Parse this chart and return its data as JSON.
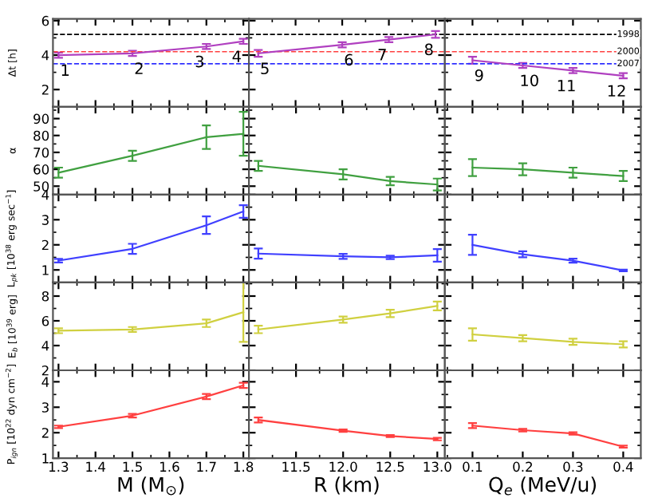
{
  "chart_data": [
    {
      "type": "line",
      "x": [
        1.3,
        1.5,
        1.7,
        1.8
      ],
      "values": [
        4.0,
        4.1,
        4.5,
        4.8
      ],
      "errors": [
        0.15,
        0.15,
        0.15,
        0.15
      ],
      "color": "#b040c0",
      "xlim": [
        1.285,
        1.815
      ],
      "xticks": [
        1.3,
        1.4,
        1.5,
        1.6,
        1.7,
        1.8
      ],
      "ylim": [
        1.0,
        6.1
      ],
      "yticks": [
        2,
        4,
        6
      ],
      "ylabel": "Δt [h]",
      "tick_labels": "y",
      "ref_lines": [
        {
          "axis": "y",
          "value": 5.2,
          "color": "#000000",
          "line_style": "dashed"
        },
        {
          "axis": "y",
          "value": 4.2,
          "color": "#ff4040",
          "line_style": "dashed"
        },
        {
          "axis": "y",
          "value": 3.5,
          "color": "#3030ff",
          "line_style": "dashed"
        }
      ],
      "annotations": [
        {
          "text": "1",
          "x": 1.3,
          "y": 4.0
        },
        {
          "text": "2",
          "x": 1.5,
          "y": 4.1
        },
        {
          "text": "3",
          "x": 1.7,
          "y": 4.5
        },
        {
          "text": "4",
          "x": 1.8,
          "y": 4.8
        }
      ]
    },
    {
      "type": "line",
      "x": [
        11.1,
        12.0,
        12.5,
        13.0
      ],
      "values": [
        4.1,
        4.6,
        4.9,
        5.2
      ],
      "errors": [
        0.2,
        0.15,
        0.15,
        0.2
      ],
      "color": "#b040c0",
      "xlim": [
        11.0,
        13.1
      ],
      "xticks": [
        11.5,
        12,
        12.5,
        13
      ],
      "ylim": [
        1.0,
        6.1
      ],
      "yticks": [
        2,
        4,
        6
      ],
      "tick_labels": false,
      "ref_lines": [
        {
          "axis": "y",
          "value": 5.2,
          "color": "#000000",
          "line_style": "dashed"
        },
        {
          "axis": "y",
          "value": 4.2,
          "color": "#ff4040",
          "line_style": "dashed"
        },
        {
          "axis": "y",
          "value": 3.5,
          "color": "#3030ff",
          "line_style": "dashed"
        }
      ],
      "annotations": [
        {
          "text": "5",
          "x": 11.1,
          "y": 4.1
        },
        {
          "text": "6",
          "x": 12.0,
          "y": 4.6
        },
        {
          "text": "7",
          "x": 12.5,
          "y": 4.9
        },
        {
          "text": "8",
          "x": 13.0,
          "y": 5.2
        }
      ]
    },
    {
      "type": "line",
      "x": [
        0.1,
        0.2,
        0.3,
        0.4
      ],
      "values": [
        3.7,
        3.4,
        3.1,
        2.8
      ],
      "errors": [
        0.2,
        0.15,
        0.15,
        0.15
      ],
      "color": "#b040c0",
      "xlim": [
        0.045,
        0.435
      ],
      "xticks": [
        0.1,
        0.2,
        0.3,
        0.4
      ],
      "ylim": [
        1.0,
        6.1
      ],
      "yticks": [
        2,
        4,
        6
      ],
      "tick_labels": false,
      "ref_lines": [
        {
          "axis": "y",
          "value": 5.2,
          "color": "#000000",
          "line_style": "dashed"
        },
        {
          "axis": "y",
          "value": 4.2,
          "color": "#ff4040",
          "line_style": "dashed"
        },
        {
          "axis": "y",
          "value": 3.5,
          "color": "#3030ff",
          "line_style": "dashed"
        }
      ],
      "annotations": [
        {
          "text": "9",
          "x": 0.1,
          "y": 3.7
        },
        {
          "text": "10",
          "x": 0.2,
          "y": 3.4
        },
        {
          "text": "11",
          "x": 0.3,
          "y": 3.1
        },
        {
          "text": "12",
          "x": 0.4,
          "y": 2.8
        },
        {
          "text": "1998",
          "x": 0.41,
          "y": 5.2
        },
        {
          "text": "2000",
          "x": 0.41,
          "y": 4.2
        },
        {
          "text": "2007",
          "x": 0.41,
          "y": 3.5
        }
      ]
    },
    {
      "type": "line",
      "x": [
        1.3,
        1.5,
        1.7,
        1.8
      ],
      "values": [
        58,
        68,
        79,
        81
      ],
      "errors": [
        3,
        3,
        7,
        13
      ],
      "color": "#40a040",
      "xlim": [
        1.285,
        1.815
      ],
      "xticks": [
        1.3,
        1.4,
        1.5,
        1.6,
        1.7,
        1.8
      ],
      "ylim": [
        45,
        97
      ],
      "yticks": [
        50,
        60,
        70,
        80,
        90
      ],
      "ylabel": "α",
      "tick_labels": "y"
    },
    {
      "type": "line",
      "x": [
        11.1,
        12.0,
        12.5,
        13.0
      ],
      "values": [
        62,
        57,
        53,
        51
      ],
      "errors": [
        3,
        3,
        2.5,
        3.5
      ],
      "color": "#40a040",
      "xlim": [
        11.0,
        13.08
      ],
      "xticks": [
        11.5,
        12,
        12.5,
        13
      ],
      "ylim": [
        45,
        97
      ],
      "yticks": [
        50,
        60,
        70,
        80,
        90
      ],
      "tick_labels": false
    },
    {
      "type": "line",
      "x": [
        0.1,
        0.2,
        0.3,
        0.4
      ],
      "values": [
        61,
        60,
        58,
        56
      ],
      "errors": [
        5,
        3.5,
        3,
        3
      ],
      "color": "#40a040",
      "xlim": [
        0.045,
        0.435
      ],
      "xticks": [
        0.1,
        0.2,
        0.3,
        0.4
      ],
      "ylim": [
        45,
        97
      ],
      "yticks": [
        50,
        60,
        70,
        80,
        90
      ],
      "tick_labels": false
    },
    {
      "type": "line",
      "x": [
        1.3,
        1.5,
        1.7,
        1.8
      ],
      "values": [
        1.37,
        1.84,
        2.78,
        3.33
      ],
      "errors": [
        0.07,
        0.2,
        0.35,
        0.25
      ],
      "color": "#4040ff",
      "xlim": [
        1.285,
        1.815
      ],
      "xticks": [
        1.3,
        1.4,
        1.5,
        1.6,
        1.7,
        1.8
      ],
      "ylim": [
        0.5,
        4.0
      ],
      "yticks": [
        1,
        2,
        3,
        4
      ],
      "ylabel": "L$_{pk}$ [10$^{38}$ erg sec$^{−1}$]",
      "tick_labels": "y"
    },
    {
      "type": "line",
      "x": [
        11.1,
        12.0,
        12.5,
        13.0
      ],
      "values": [
        1.65,
        1.54,
        1.5,
        1.58
      ],
      "errors": [
        0.2,
        0.1,
        0.07,
        0.25
      ],
      "color": "#4040ff",
      "xlim": [
        11.0,
        13.08
      ],
      "xticks": [
        11.5,
        12,
        12.5,
        13
      ],
      "ylim": [
        0.5,
        4.0
      ],
      "yticks": [
        1,
        2,
        3,
        4
      ],
      "tick_labels": false
    },
    {
      "type": "line",
      "x": [
        0.1,
        0.2,
        0.3,
        0.4
      ],
      "values": [
        2.0,
        1.62,
        1.37,
        0.98
      ],
      "errors": [
        0.4,
        0.12,
        0.08,
        0.03
      ],
      "color": "#4040ff",
      "xlim": [
        0.045,
        0.435
      ],
      "xticks": [
        0.1,
        0.2,
        0.3,
        0.4
      ],
      "ylim": [
        0.5,
        4.0
      ],
      "yticks": [
        1,
        2,
        3,
        4
      ],
      "tick_labels": false
    },
    {
      "type": "line",
      "x": [
        1.3,
        1.5,
        1.7,
        1.8
      ],
      "values": [
        5.2,
        5.3,
        5.8,
        6.7
      ],
      "errors": [
        0.2,
        0.2,
        0.3,
        2.4
      ],
      "color": "#d0d040",
      "xlim": [
        1.285,
        1.815
      ],
      "xticks": [
        1.3,
        1.4,
        1.5,
        1.6,
        1.7,
        1.8
      ],
      "ylim": [
        2,
        9.1
      ],
      "yticks": [
        2,
        4,
        6,
        8
      ],
      "ylabel": "E$_{b}$ [10$^{39}$ erg]",
      "tick_labels": "y"
    },
    {
      "type": "line",
      "x": [
        11.1,
        12.0,
        12.5,
        13.0
      ],
      "values": [
        5.3,
        6.1,
        6.6,
        7.2
      ],
      "errors": [
        0.3,
        0.25,
        0.3,
        0.35
      ],
      "color": "#d0d040",
      "xlim": [
        11.0,
        13.08
      ],
      "xticks": [
        11.5,
        12,
        12.5,
        13
      ],
      "ylim": [
        2,
        9.1
      ],
      "yticks": [
        2,
        4,
        6,
        8
      ],
      "tick_labels": false
    },
    {
      "type": "line",
      "x": [
        0.1,
        0.2,
        0.3,
        0.4
      ],
      "values": [
        4.9,
        4.6,
        4.3,
        4.1
      ],
      "errors": [
        0.5,
        0.25,
        0.25,
        0.25
      ],
      "color": "#d0d040",
      "xlim": [
        0.045,
        0.435
      ],
      "xticks": [
        0.1,
        0.2,
        0.3,
        0.4
      ],
      "ylim": [
        2,
        9.1
      ],
      "yticks": [
        2,
        4,
        6,
        8
      ],
      "tick_labels": false
    },
    {
      "type": "line",
      "x": [
        1.3,
        1.5,
        1.7,
        1.8
      ],
      "values": [
        2.23,
        2.67,
        3.42,
        3.86
      ],
      "errors": [
        0.05,
        0.07,
        0.1,
        0.1
      ],
      "color": "#ff4040",
      "xlim": [
        1.285,
        1.815
      ],
      "xticks": [
        1.3,
        1.4,
        1.5,
        1.6,
        1.7,
        1.8
      ],
      "ylim": [
        1,
        4.45
      ],
      "yticks": [
        1,
        2,
        3,
        4
      ],
      "ylabel": "P$_{ign}$ [10$^{22}$ dyn cm$^{−2}$]",
      "xlabel": "M (M$_{⊙}$)"
    },
    {
      "type": "line",
      "x": [
        11.1,
        12.0,
        12.5,
        13.0
      ],
      "values": [
        2.5,
        2.08,
        1.87,
        1.75
      ],
      "errors": [
        0.1,
        0.05,
        0.04,
        0.05
      ],
      "color": "#ff4040",
      "xlim": [
        11.0,
        13.08
      ],
      "xticks": [
        11.5,
        {
          "value": 12.0,
          "label": "12.0"
        },
        12.5,
        {
          "value": 13.0,
          "label": "13.0"
        }
      ],
      "ylim": [
        1,
        4.45
      ],
      "yticks": [
        1,
        2,
        3,
        4
      ],
      "xlabel": "R (km)",
      "tick_labels": "x"
    },
    {
      "type": "line",
      "x": [
        0.1,
        0.2,
        0.3,
        0.4
      ],
      "values": [
        2.28,
        2.1,
        1.97,
        1.45
      ],
      "errors": [
        0.1,
        0.05,
        0.05,
        0.04
      ],
      "color": "#ff4040",
      "xlim": [
        0.045,
        0.435
      ],
      "xticks": [
        0.1,
        0.2,
        0.3,
        0.4
      ],
      "ylim": [
        1,
        4.45
      ],
      "yticks": [
        1,
        2,
        3,
        4
      ],
      "xlabel": "Q$_{e}$ (MeV/u)",
      "tick_labels": "x"
    }
  ]
}
